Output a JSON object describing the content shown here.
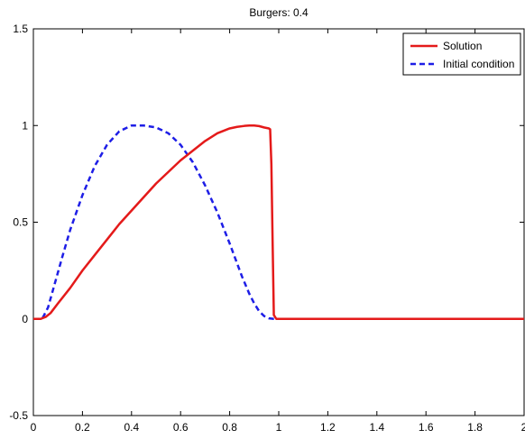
{
  "chart_data": {
    "type": "line",
    "title": "Burgers: 0.4",
    "xlabel": "",
    "ylabel": "",
    "xlim": [
      0,
      2
    ],
    "ylim": [
      -0.5,
      1.5
    ],
    "x_ticks": [
      0,
      0.2,
      0.4,
      0.6,
      0.8,
      1,
      1.2,
      1.4,
      1.6,
      1.8,
      2
    ],
    "x_tick_labels": [
      "0",
      "0.2",
      "0.4",
      "0.6",
      "0.8",
      "1",
      "1.2",
      "1.4",
      "1.6",
      "1.8",
      "2"
    ],
    "y_ticks": [
      -0.5,
      0,
      0.5,
      1,
      1.5
    ],
    "y_tick_labels": [
      "-0.5",
      "0",
      "0.5",
      "1",
      "1.5"
    ],
    "grid": false,
    "legend_position": "top-right",
    "series": [
      {
        "name": "Solution",
        "color": "#e41a1a",
        "line_style": "solid",
        "x": [
          0,
          0.03,
          0.05,
          0.07,
          0.1,
          0.15,
          0.2,
          0.25,
          0.3,
          0.35,
          0.4,
          0.45,
          0.5,
          0.55,
          0.6,
          0.65,
          0.7,
          0.75,
          0.8,
          0.83,
          0.86,
          0.88,
          0.9,
          0.92,
          0.94,
          0.96,
          0.965,
          0.97,
          0.975,
          0.98,
          0.99,
          1.0,
          1.2,
          1.4,
          1.6,
          1.8,
          2.0
        ],
        "y": [
          0,
          0,
          0.01,
          0.03,
          0.08,
          0.16,
          0.25,
          0.33,
          0.41,
          0.49,
          0.56,
          0.63,
          0.7,
          0.76,
          0.82,
          0.87,
          0.92,
          0.96,
          0.985,
          0.993,
          0.998,
          1.0,
          1.0,
          0.997,
          0.99,
          0.985,
          0.98,
          0.8,
          0.4,
          0.02,
          0,
          0,
          0,
          0,
          0,
          0,
          0
        ]
      },
      {
        "name": "Initial condition",
        "color": "#1e1ee6",
        "line_style": "dashed",
        "x": [
          0,
          0.02,
          0.04,
          0.06,
          0.08,
          0.1,
          0.12,
          0.15,
          0.2,
          0.25,
          0.3,
          0.35,
          0.4,
          0.45,
          0.5,
          0.55,
          0.6,
          0.65,
          0.7,
          0.75,
          0.8,
          0.85,
          0.88,
          0.9,
          0.92,
          0.94,
          0.96,
          0.98,
          1.0,
          1.2,
          1.4,
          1.6,
          1.8,
          2.0
        ],
        "y": [
          0,
          0,
          0.01,
          0.06,
          0.15,
          0.24,
          0.33,
          0.46,
          0.64,
          0.79,
          0.9,
          0.97,
          1.0,
          1.0,
          0.99,
          0.96,
          0.9,
          0.81,
          0.69,
          0.55,
          0.39,
          0.22,
          0.13,
          0.08,
          0.04,
          0.015,
          0.003,
          0,
          0,
          0,
          0,
          0,
          0,
          0
        ]
      }
    ]
  }
}
